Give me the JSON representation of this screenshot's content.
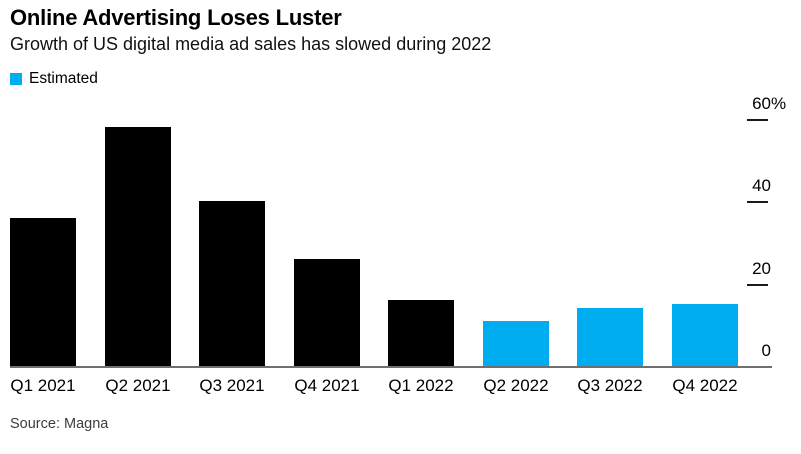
{
  "header": {
    "title": "Online Advertising Loses Luster",
    "subtitle": "Growth of US digital media ad sales has slowed during 2022"
  },
  "legend": {
    "estimated_label": "Estimated"
  },
  "chart_data": {
    "type": "bar",
    "title": "Online Advertising Loses Luster",
    "subtitle": "Growth of US digital media ad sales has slowed during 2022",
    "categories": [
      "Q1 2021",
      "Q2 2021",
      "Q3 2021",
      "Q4 2021",
      "Q1 2022",
      "Q2 2022",
      "Q3 2022",
      "Q4 2022"
    ],
    "values": [
      36,
      58,
      40,
      26,
      16,
      11,
      14,
      15
    ],
    "estimated": [
      false,
      false,
      false,
      false,
      false,
      true,
      true,
      true
    ],
    "unit": "%",
    "ylim": [
      0,
      60
    ],
    "yticks": [
      {
        "value": 60,
        "label": "60",
        "suffix": "%"
      },
      {
        "value": 40,
        "label": "40",
        "suffix": ""
      },
      {
        "value": 20,
        "label": "20",
        "suffix": ""
      },
      {
        "value": 0,
        "label": "0",
        "suffix": ""
      }
    ],
    "grid": false,
    "legend_position": "top-left",
    "yaxis_side": "right",
    "bar_colors": {
      "actual": "#000000",
      "estimated": "#00ADF0"
    },
    "axis_line_color": "#6f6f6f"
  },
  "footer": {
    "source": "Source: Magna"
  }
}
